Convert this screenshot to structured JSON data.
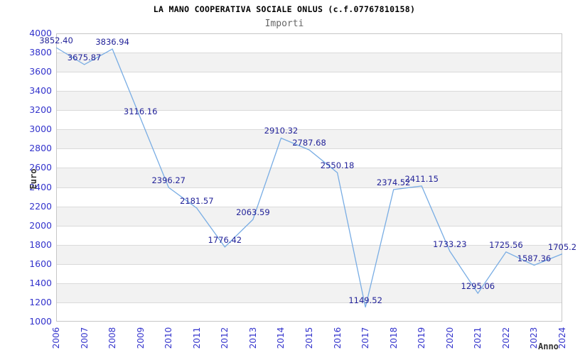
{
  "chart_data": {
    "type": "line",
    "title": "LA MANO COOPERATIVA SOCIALE ONLUS (c.f.07767810158)",
    "subtitle": "Importi",
    "xlabel": "Anno",
    "ylabel": "Euro",
    "x": [
      "2006",
      "2007",
      "2008",
      "2009",
      "2010",
      "2011",
      "2012",
      "2013",
      "2014",
      "2015",
      "2016",
      "2017",
      "2018",
      "2019",
      "2020",
      "2021",
      "2022",
      "2023",
      "2024"
    ],
    "values": [
      3852.4,
      3675.87,
      3836.94,
      3116.16,
      2396.27,
      2181.57,
      1776.42,
      2063.59,
      2910.32,
      2787.68,
      2550.18,
      1149.52,
      2374.52,
      2411.15,
      1733.23,
      1295.06,
      1725.56,
      1587.36,
      1705.2
    ],
    "point_labels": [
      "3852.40",
      "3675.87",
      "3836.94",
      "3116.16",
      "2396.27",
      "2181.57",
      "1776.42",
      "2063.59",
      "2910.32",
      "2787.68",
      "2550.18",
      "1149.52",
      "2374.52",
      "2411.15",
      "1733.23",
      "1295.06",
      "1725.56",
      "1587.36",
      "1705.2"
    ],
    "ylim": [
      1000,
      4000
    ],
    "ytick_step": 200,
    "grid": "horizontal",
    "legend": "none",
    "band_fill": "alternating",
    "colors": {
      "line": "#79ade4",
      "tick_text": "#3333cc",
      "data_label_text": "#232399",
      "band": "#f2f2f2",
      "grid": "#dadada",
      "border": "#c6c6c6",
      "title": "#000000",
      "subtitle": "#666666",
      "axis_title": "#333333"
    }
  }
}
